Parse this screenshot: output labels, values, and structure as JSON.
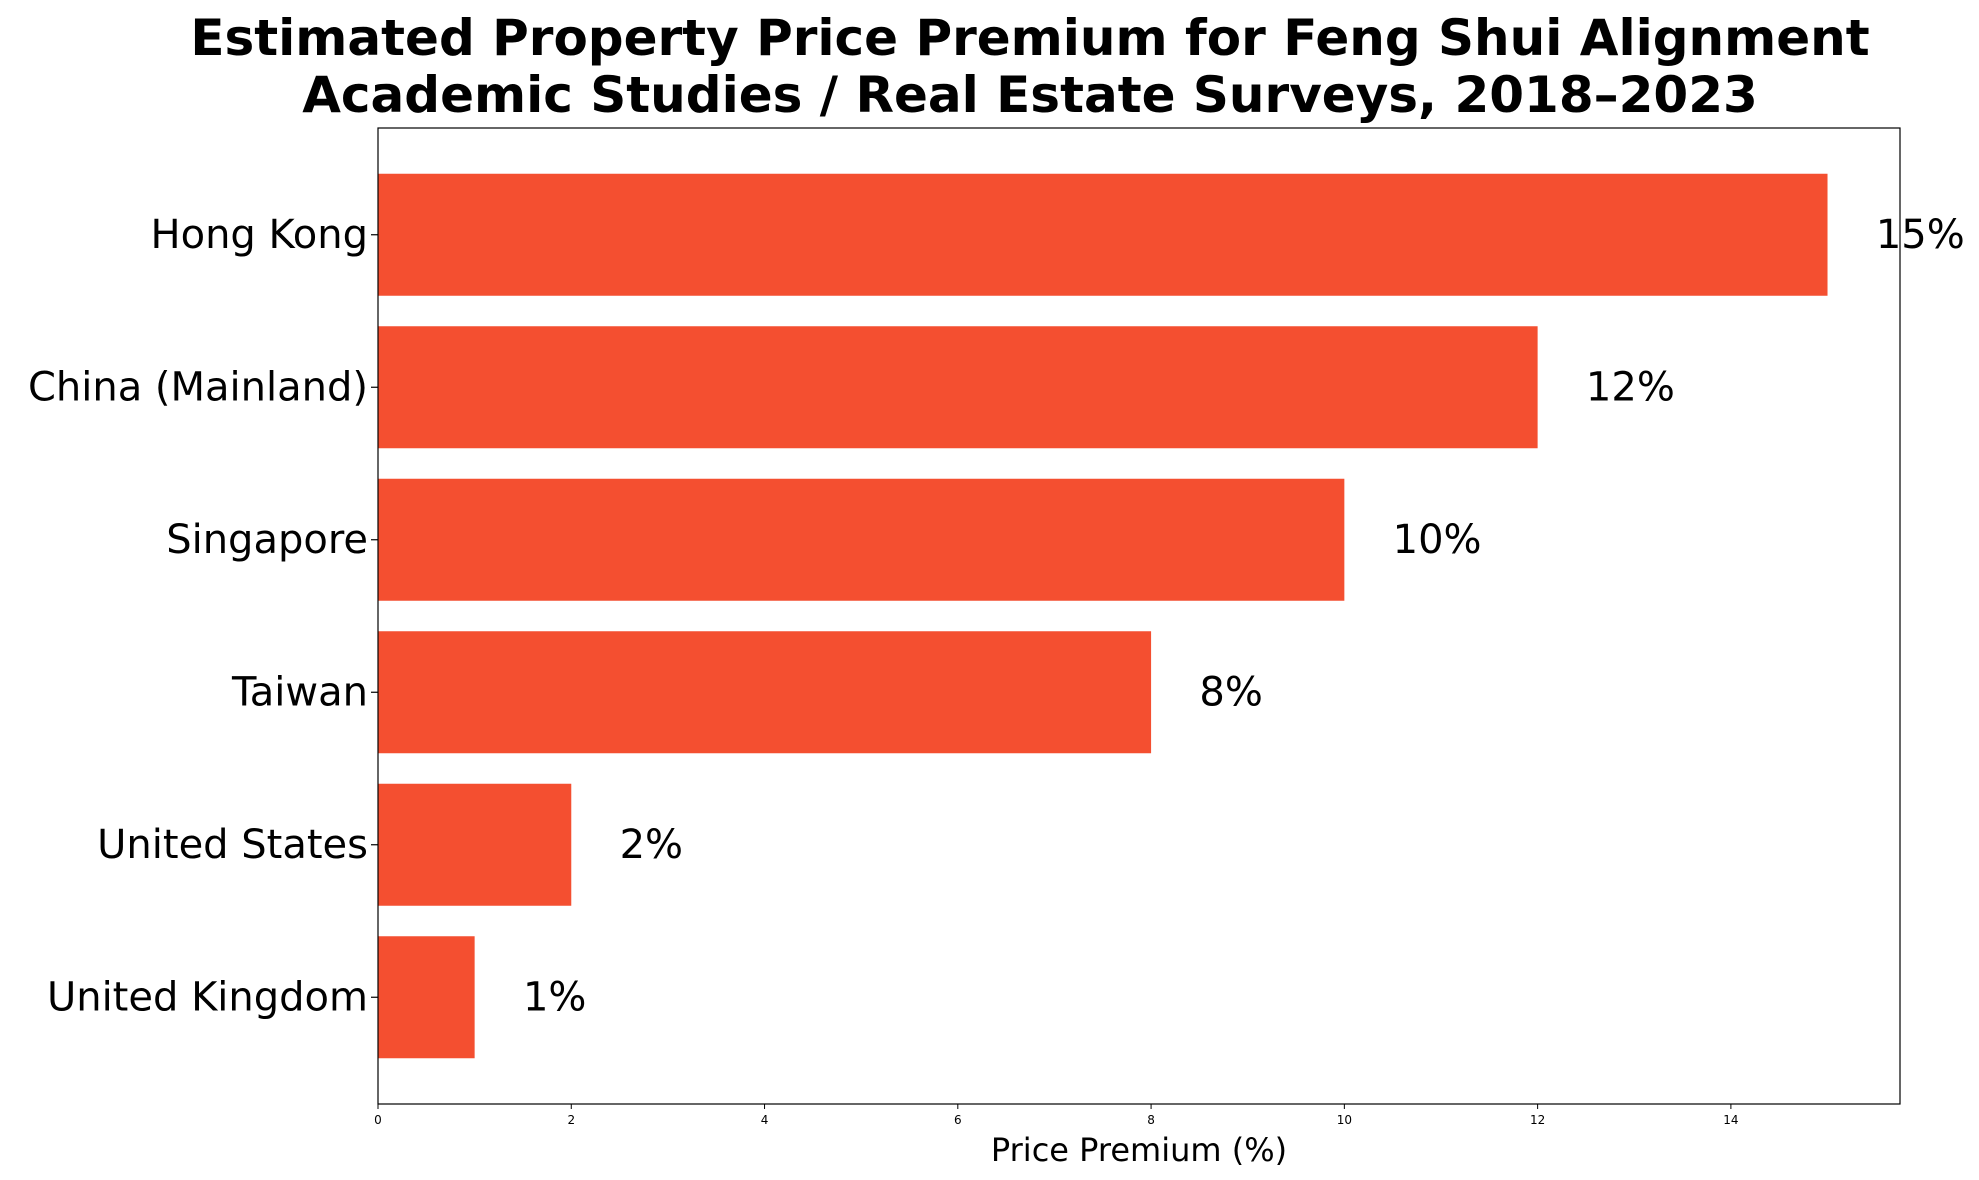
{
  "chart_data": {
    "type": "bar",
    "orientation": "horizontal",
    "title_lines": [
      "Estimated Property Price Premium for Feng Shui Alignment",
      "Academic Studies / Real Estate Surveys, 2018–2023"
    ],
    "xlabel": "Price Premium (%)",
    "ylabel": "",
    "categories": [
      "Hong Kong",
      "China (Mainland)",
      "Singapore",
      "Taiwan",
      "United States",
      "United Kingdom"
    ],
    "values": [
      15,
      12,
      10,
      8,
      2,
      1
    ],
    "value_labels": [
      "15%",
      "12%",
      "10%",
      "8%",
      "2%",
      "1%"
    ],
    "xticks": [
      0,
      2,
      4,
      6,
      8,
      10,
      12,
      14
    ],
    "xticklabels": [
      "0",
      "2",
      "4",
      "6",
      "8",
      "10",
      "12",
      "14"
    ],
    "xlim": [
      0,
      15.75
    ],
    "grid": false,
    "bar_color": "#F44F30"
  }
}
